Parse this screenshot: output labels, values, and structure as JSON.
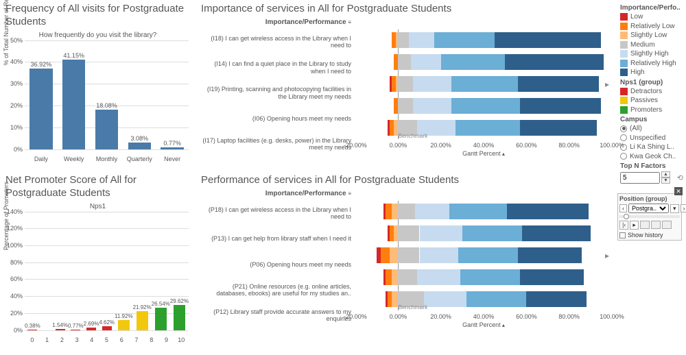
{
  "colors": {
    "low": "#d62728",
    "rel_low": "#ff7f0e",
    "sl_low": "#ffbb78",
    "medium": "#c7c7c7",
    "sl_high": "#c6dbef",
    "rel_high": "#6baed6",
    "high": "#2e5f8a",
    "detractors": "#d62728",
    "passives": "#f2c80f",
    "promoters": "#2ca02c",
    "freq_bar": "#4a7aa8",
    "grid": "#dddddd",
    "axis": "#888888"
  },
  "legend": {
    "title1": "Importance/Perfo..",
    "items1": [
      {
        "label": "Low",
        "ckey": "low"
      },
      {
        "label": "Relatively Low",
        "ckey": "rel_low"
      },
      {
        "label": "Slightly Low",
        "ckey": "sl_low"
      },
      {
        "label": "Medium",
        "ckey": "medium"
      },
      {
        "label": "Slightly High",
        "ckey": "sl_high"
      },
      {
        "label": "Relatively High",
        "ckey": "rel_high"
      },
      {
        "label": "High",
        "ckey": "high"
      }
    ],
    "title2": "Nps1 (group)",
    "items2": [
      {
        "label": "Detractors",
        "ckey": "detractors"
      },
      {
        "label": "Passives",
        "ckey": "passives"
      },
      {
        "label": "Promoters",
        "ckey": "promoters"
      }
    ],
    "title3": "Campus",
    "campus": [
      {
        "label": "(All)",
        "selected": true
      },
      {
        "label": "Unspecified",
        "selected": false
      },
      {
        "label": "Li Ka Shing L..",
        "selected": false
      },
      {
        "label": "Kwa Geok Ch..",
        "selected": false
      }
    ],
    "topn_label": "Top N Factors",
    "topn_value": "5"
  },
  "positionGroup": {
    "title": "Position (group)",
    "selected": "Postgra..",
    "showHistory": "Show history"
  },
  "freq": {
    "title": "Frequency of All visits for Postgraduate Students",
    "subtitle": "How frequently do you visit the library?",
    "ylabel": "% of Total Number of Responses",
    "ymax": 50,
    "ytick": 10,
    "categories": [
      "Daily",
      "Weekly",
      "Monthly",
      "Quarterly",
      "Never"
    ],
    "values": [
      36.92,
      41.15,
      18.08,
      3.08,
      0.77
    ]
  },
  "nps": {
    "title": "Net Promoter Score of All for Postgraduate Students",
    "subtitle": "Nps1",
    "ylabel": "Percentage of Promoters",
    "ymax": 140,
    "ytick": 20,
    "categories": [
      "0",
      "1",
      "2",
      "3",
      "4",
      "5",
      "6",
      "7",
      "8",
      "9",
      "10"
    ],
    "values": [
      0.38,
      0,
      0,
      1.54,
      0.77,
      2.69,
      4.62,
      11.92,
      21.92,
      26.54,
      29.62
    ],
    "groups": [
      "d",
      "d",
      "d",
      "d",
      "d",
      "d",
      "d",
      "p",
      "p",
      "g",
      "g"
    ]
  },
  "importance": {
    "title": "Importance of services in All for Postgraduate Students",
    "head": "Importance/Performance",
    "xlabel": "Gantt Percent",
    "xmin": -20,
    "xmax": 100,
    "xtick": 20,
    "benchmark": "Benchmark",
    "rows": [
      {
        "label": "(I18) I can get wireless access in the Library when I need to",
        "neg": [
          [
            "rel_low",
            2
          ],
          [
            "sl_low",
            1
          ]
        ],
        "pos": [
          [
            "medium",
            5
          ],
          [
            "sl_high",
            12
          ],
          [
            "rel_high",
            28
          ],
          [
            "high",
            50
          ]
        ]
      },
      {
        "label": "(I14) I can find a quiet place in the Library to study when I need to",
        "neg": [
          [
            "rel_low",
            2
          ]
        ],
        "pos": [
          [
            "medium",
            6
          ],
          [
            "sl_high",
            14
          ],
          [
            "rel_high",
            30
          ],
          [
            "high",
            46
          ]
        ]
      },
      {
        "label": "(I19) Printing, scanning and photocopying facilities in the Library meet my needs",
        "neg": [
          [
            "low",
            1
          ],
          [
            "rel_low",
            2
          ],
          [
            "sl_low",
            1
          ]
        ],
        "pos": [
          [
            "medium",
            7
          ],
          [
            "sl_high",
            18
          ],
          [
            "rel_high",
            31
          ],
          [
            "high",
            38
          ]
        ]
      },
      {
        "label": "(I06) Opening hours meet my needs",
        "neg": [
          [
            "rel_low",
            2
          ]
        ],
        "pos": [
          [
            "medium",
            7
          ],
          [
            "sl_high",
            18
          ],
          [
            "rel_high",
            32
          ],
          [
            "high",
            38
          ]
        ]
      },
      {
        "label": "(I17) Laptop facilities (e.g. desks, power) in the Library meet my needs",
        "neg": [
          [
            "low",
            1
          ],
          [
            "rel_low",
            2
          ],
          [
            "sl_low",
            2
          ]
        ],
        "pos": [
          [
            "medium",
            9
          ],
          [
            "sl_high",
            18
          ],
          [
            "rel_high",
            30
          ],
          [
            "high",
            36
          ]
        ]
      }
    ]
  },
  "performance": {
    "title": "Performance of services in All for Postgraduate Students",
    "head": "Importance/Performance",
    "xlabel": "Gantt Percent",
    "xmin": -20,
    "xmax": 100,
    "xtick": 20,
    "benchmark": "Benchmark",
    "rows": [
      {
        "label": "(P18) I can get wireless access in the Library when I need to",
        "neg": [
          [
            "low",
            1
          ],
          [
            "rel_low",
            3
          ],
          [
            "sl_low",
            3
          ]
        ],
        "pos": [
          [
            "medium",
            8
          ],
          [
            "sl_high",
            16
          ],
          [
            "rel_high",
            27
          ],
          [
            "high",
            38
          ]
        ]
      },
      {
        "label": "(P13) I can get help from library staff when I need it",
        "neg": [
          [
            "low",
            1
          ],
          [
            "rel_low",
            2
          ],
          [
            "sl_low",
            2
          ]
        ],
        "pos": [
          [
            "medium",
            10
          ],
          [
            "sl_high",
            20
          ],
          [
            "rel_high",
            28
          ],
          [
            "high",
            32
          ]
        ]
      },
      {
        "label": "(P06) Opening hours meet my needs",
        "neg": [
          [
            "low",
            2
          ],
          [
            "rel_low",
            4
          ],
          [
            "sl_low",
            4
          ]
        ],
        "pos": [
          [
            "medium",
            10
          ],
          [
            "sl_high",
            18
          ],
          [
            "rel_high",
            28
          ],
          [
            "high",
            30
          ]
        ]
      },
      {
        "label": "(P21) Online resources (e.g. online articles, databases, ebooks) are useful for my studies an..",
        "neg": [
          [
            "low",
            1
          ],
          [
            "rel_low",
            3
          ],
          [
            "sl_low",
            3
          ]
        ],
        "pos": [
          [
            "medium",
            9
          ],
          [
            "sl_high",
            20
          ],
          [
            "rel_high",
            28
          ],
          [
            "high",
            30
          ]
        ]
      },
      {
        "label": "(P12) Library staff provide accurate answers to my enquiries",
        "neg": [
          [
            "low",
            1
          ],
          [
            "rel_low",
            2
          ],
          [
            "sl_low",
            3
          ]
        ],
        "pos": [
          [
            "medium",
            12
          ],
          [
            "sl_high",
            20
          ],
          [
            "rel_high",
            28
          ],
          [
            "high",
            28
          ]
        ]
      }
    ]
  }
}
